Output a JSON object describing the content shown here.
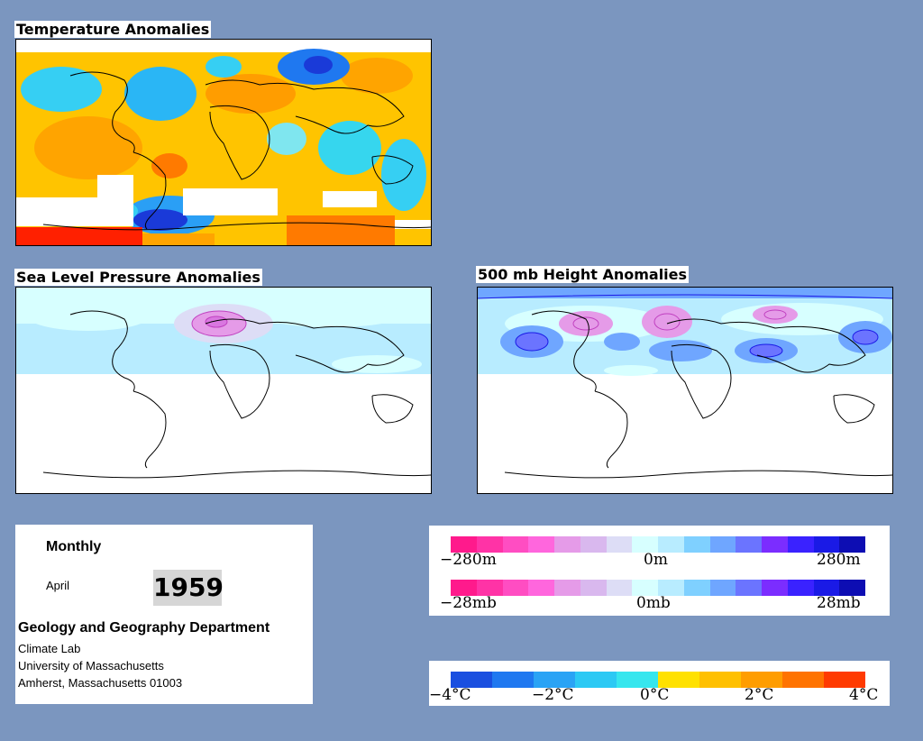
{
  "maps": {
    "temperature": {
      "title": "Temperature Anomalies"
    },
    "pressure": {
      "title": "Sea Level Pressure Anomalies"
    },
    "height": {
      "title": "500 mb Height Anomalies"
    }
  },
  "info": {
    "period": "Monthly",
    "month": "April",
    "year": "1959",
    "department": "Geology and Geography Department",
    "lab": "Climate Lab",
    "university": "University of Massachusetts",
    "address": "Amherst, Massachusetts 01003"
  },
  "scales": {
    "height": {
      "min_label": "−280m",
      "mid_label": "0m",
      "max_label": "280m"
    },
    "pressure": {
      "min_label": "−28mb",
      "mid_label": "0mb",
      "max_label": "28mb"
    },
    "temperature": {
      "labels": [
        "−4°C",
        "−2°C",
        "0°C",
        "2°C",
        "4°C"
      ]
    }
  },
  "colors": {
    "background": "#7b96bf",
    "anomaly_palette": [
      "#ff1a8c",
      "#ff33a6",
      "#ff4dc2",
      "#ff66dd",
      "#e59be8",
      "#d9b8ee",
      "#ddddf6",
      "#d7ffff",
      "#b8ecff",
      "#7fd0ff",
      "#6fa6ff",
      "#6b74ff",
      "#7b2dff",
      "#3a22ff",
      "#1a1ae6",
      "#0d0db3"
    ],
    "temperature_palette": [
      "#1a4fe0",
      "#1f78f0",
      "#2aa3f5",
      "#2cc9f4",
      "#36e6ee",
      "#ffe100",
      "#ffc000",
      "#ff9d00",
      "#ff7300",
      "#ff3a00"
    ]
  }
}
